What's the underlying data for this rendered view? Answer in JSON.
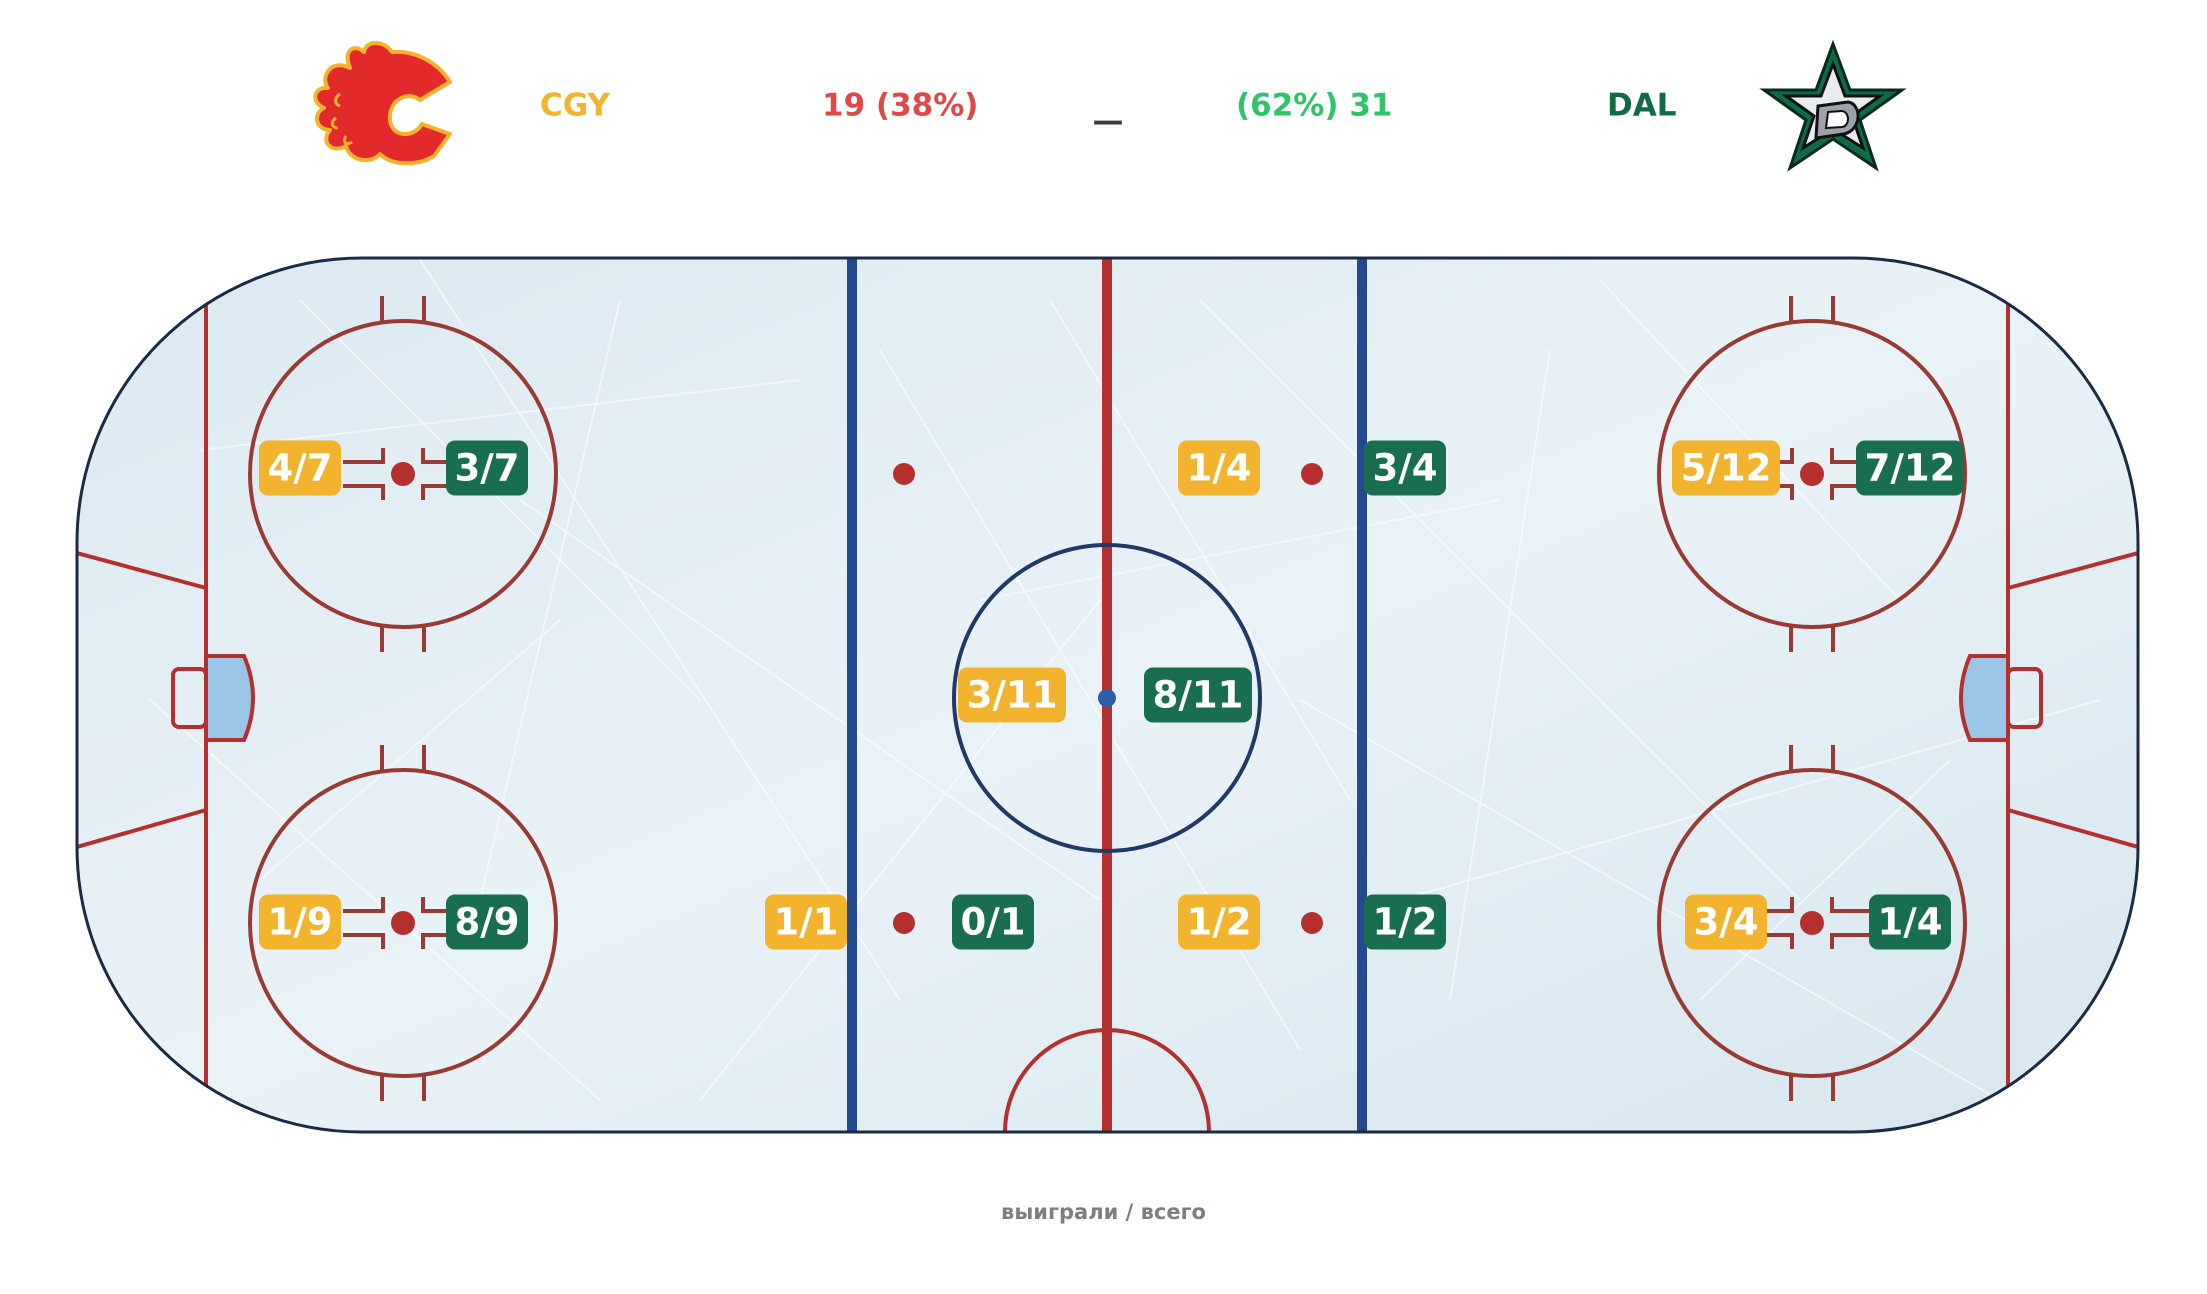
{
  "teams": {
    "home": {
      "abbr": "CGY",
      "score": "19 (38%)",
      "color": "#f2b32e",
      "score_color": "#e04848",
      "logo": "flames-logo"
    },
    "away": {
      "abbr": "DAL",
      "score": "(62%) 31",
      "color": "#116b45",
      "score_color": "#2ec46a",
      "logo": "stars-logo"
    }
  },
  "separator": "—",
  "spots": [
    {
      "name": "left-top-circle",
      "home": "4/7",
      "away": "3/7"
    },
    {
      "name": "left-bottom-circle",
      "home": "1/9",
      "away": "8/9"
    },
    {
      "name": "left-neutral-bottom",
      "home": "1/1",
      "away": "0/1"
    },
    {
      "name": "right-neutral-top",
      "home": "1/4",
      "away": "3/4"
    },
    {
      "name": "center-ice",
      "home": "3/11",
      "away": "8/11"
    },
    {
      "name": "right-neutral-bottom",
      "home": "1/2",
      "away": "1/2"
    },
    {
      "name": "right-top-circle",
      "home": "5/12",
      "away": "7/12"
    },
    {
      "name": "right-bottom-circle",
      "home": "3/4",
      "away": "1/4"
    }
  ],
  "footer": "выиграли / всего",
  "colors": {
    "home_badge": "#f2b32e",
    "away_badge": "#1a6e50",
    "ice": "#e3eef4",
    "red_line": "#b4302e",
    "blue_line": "#24498e",
    "board": "#1a2b45"
  }
}
